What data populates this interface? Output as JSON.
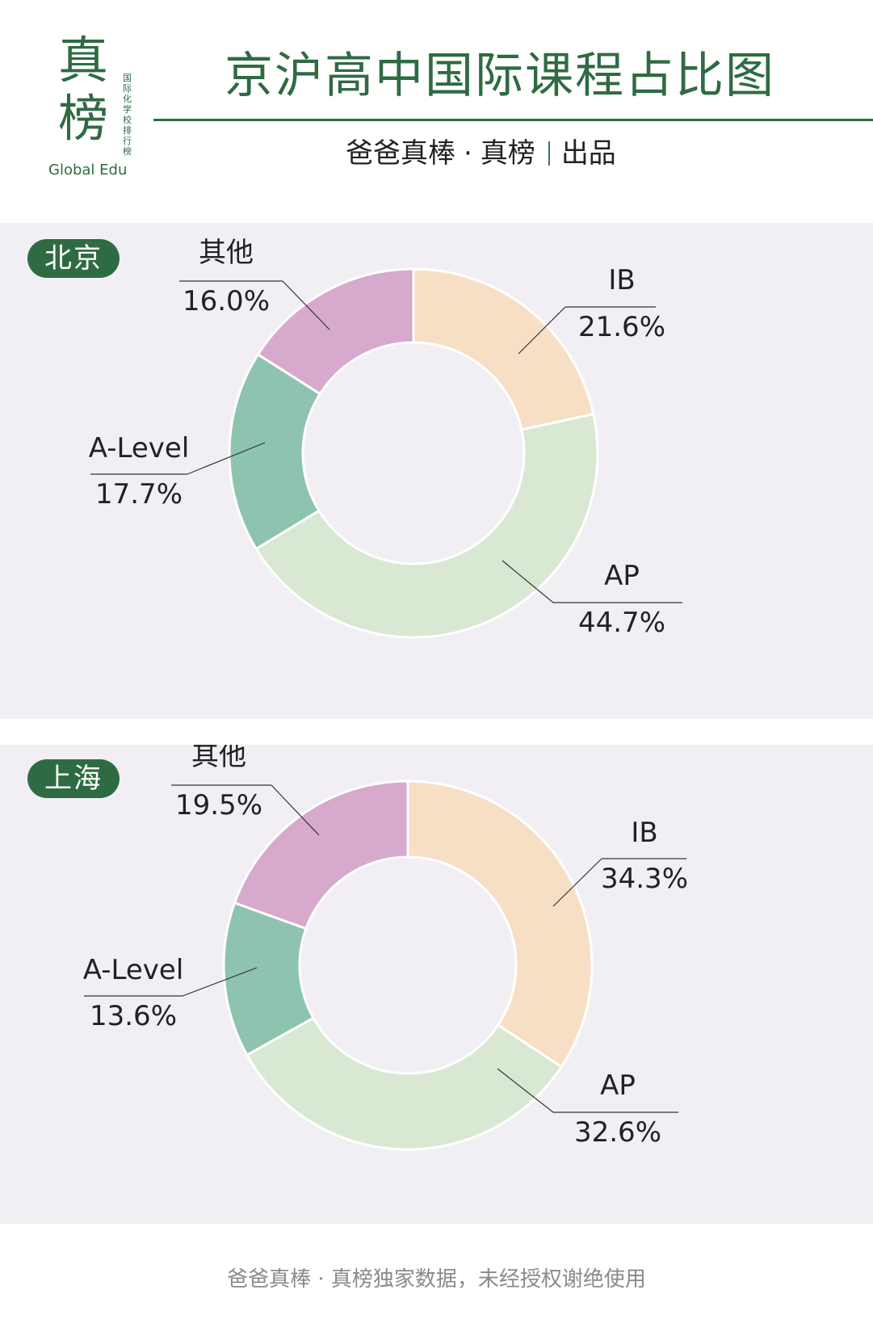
{
  "header": {
    "logo_char_1": "真",
    "logo_char_2": "榜",
    "logo_side_text": "国际化学校排行榜",
    "logo_en": "Global Edu",
    "title": "京沪高中国际课程占比图",
    "subtitle_left": "爸爸真棒",
    "subtitle_dot": "·",
    "subtitle_mid": "真榜",
    "subtitle_right": "出品"
  },
  "colors": {
    "brand_green": "#2f6b42",
    "IB": "#f7dfc6",
    "AP": "#d8e8d2",
    "A-Level": "#8ec3b0",
    "其他": "#d7a9cc"
  },
  "chart_data": [
    {
      "type": "pie",
      "city": "北京",
      "slices": [
        {
          "label": "IB",
          "value": 21.6,
          "display": "21.6%"
        },
        {
          "label": "AP",
          "value": 44.7,
          "display": "44.7%"
        },
        {
          "label": "A-Level",
          "value": 17.7,
          "display": "17.7%"
        },
        {
          "label": "其他",
          "value": 16.0,
          "display": "16.0%"
        }
      ]
    },
    {
      "type": "pie",
      "city": "上海",
      "slices": [
        {
          "label": "IB",
          "value": 34.3,
          "display": "34.3%"
        },
        {
          "label": "AP",
          "value": 32.6,
          "display": "32.6%"
        },
        {
          "label": "A-Level",
          "value": 13.6,
          "display": "13.6%"
        },
        {
          "label": "其他",
          "value": 19.5,
          "display": "19.5%"
        }
      ]
    }
  ],
  "footer": "爸爸真棒 · 真榜独家数据，未经授权谢绝使用"
}
